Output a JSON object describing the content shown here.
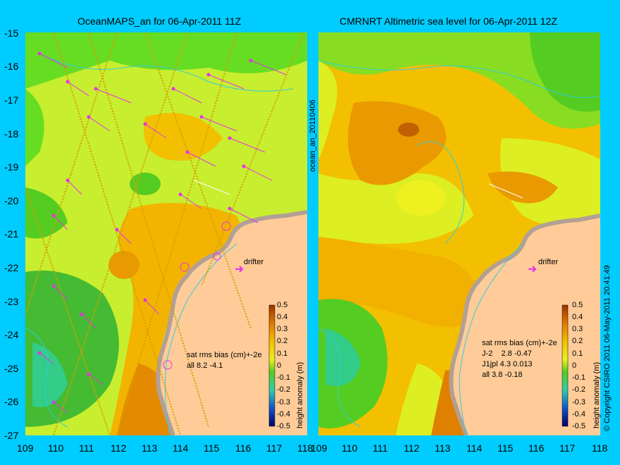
{
  "left_panel": {
    "title": "OceanMAPS_an for 06-Apr-2011 11Z",
    "stats_header": "sat rms bias (cm)+-2e",
    "stats_rows": [
      "all 8.2 -4.1"
    ],
    "drifter_label": "drifter",
    "colorbar_label": "height anomaly (m)"
  },
  "right_panel": {
    "title": "CMRNRT Altimetric sea level  for 06-Apr-2011 12Z",
    "stats_header": "sat rms bias (cm)+-2e",
    "stats_rows": [
      "J-2    2.8 -0.47",
      "J1jpl 4.3 0.013",
      "all 3.8 -0.18"
    ],
    "drifter_label": "drifter",
    "colorbar_label": "height anomaly (m)"
  },
  "side_label": "ocean_an_20110406",
  "copyright": "© Copyright CSIRO 2011    06-May-2011 20:41:49",
  "axes": {
    "y_ticks": [
      "-15",
      "-16",
      "-17",
      "-18",
      "-19",
      "-20",
      "-21",
      "-22",
      "-23",
      "-24",
      "-25",
      "-26",
      "-27"
    ],
    "x_ticks": [
      "109",
      "110",
      "111",
      "112",
      "113",
      "114",
      "115",
      "116",
      "117",
      "118"
    ]
  },
  "colorbar_ticks": [
    "0.5",
    "0.4",
    "0.3",
    "0.2",
    "0.1",
    "0",
    "-0.1",
    "-0.2",
    "-0.3",
    "-0.4",
    "-0.5"
  ],
  "colors": {
    "background": "#00ccff",
    "land": "#ffcc99",
    "coast": "#b3a094",
    "vector": "#e633e6",
    "contour": "#33ccd9"
  }
}
